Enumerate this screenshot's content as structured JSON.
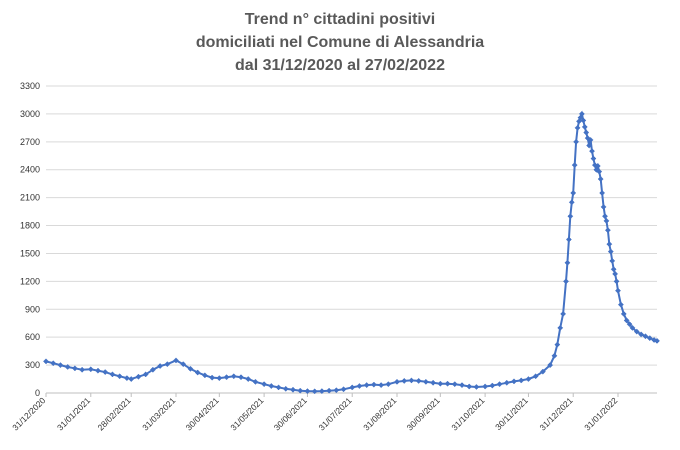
{
  "chart_data": {
    "type": "line",
    "title": [
      "Trend n° cittadini positivi",
      "domiciliati nel Comune di Alessandria",
      "dal 31/12/2020 al 27/02/2022"
    ],
    "xlabel": "",
    "ylabel": "",
    "x_range": [
      "31/12/2020",
      "27/02/2022"
    ],
    "ylim": [
      0,
      3300
    ],
    "yticks": [
      "0",
      "300",
      "600",
      "900",
      "1200",
      "1500",
      "1800",
      "2100",
      "2400",
      "2700",
      "3000",
      "3300"
    ],
    "xticks": [
      "31/12/2020",
      "31/01/2021",
      "28/02/2021",
      "31/03/2021",
      "30/04/2021",
      "31/05/2021",
      "30/06/2021",
      "31/07/2021",
      "31/08/2021",
      "30/09/2021",
      "31/10/2021",
      "30/11/2021",
      "31/12/2021",
      "31/01/2022"
    ],
    "grid": true,
    "legend": "none",
    "series_color": "#4472c4",
    "marker": "diamond",
    "series": [
      {
        "points": [
          [
            "31/12/2020",
            340
          ],
          [
            "05/01/2021",
            320
          ],
          [
            "10/01/2021",
            300
          ],
          [
            "15/01/2021",
            280
          ],
          [
            "20/01/2021",
            265
          ],
          [
            "25/01/2021",
            250
          ],
          [
            "31/01/2021",
            255
          ],
          [
            "05/02/2021",
            240
          ],
          [
            "10/02/2021",
            225
          ],
          [
            "15/02/2021",
            200
          ],
          [
            "20/02/2021",
            180
          ],
          [
            "25/02/2021",
            160
          ],
          [
            "28/02/2021",
            150
          ],
          [
            "05/03/2021",
            175
          ],
          [
            "10/03/2021",
            200
          ],
          [
            "15/03/2021",
            250
          ],
          [
            "20/03/2021",
            290
          ],
          [
            "25/03/2021",
            310
          ],
          [
            "31/03/2021",
            350
          ],
          [
            "05/04/2021",
            310
          ],
          [
            "10/04/2021",
            260
          ],
          [
            "15/04/2021",
            220
          ],
          [
            "20/04/2021",
            190
          ],
          [
            "25/04/2021",
            165
          ],
          [
            "30/04/2021",
            160
          ],
          [
            "05/05/2021",
            170
          ],
          [
            "10/05/2021",
            180
          ],
          [
            "15/05/2021",
            170
          ],
          [
            "20/05/2021",
            150
          ],
          [
            "25/05/2021",
            120
          ],
          [
            "31/05/2021",
            95
          ],
          [
            "05/06/2021",
            75
          ],
          [
            "10/06/2021",
            60
          ],
          [
            "15/06/2021",
            45
          ],
          [
            "20/06/2021",
            35
          ],
          [
            "25/06/2021",
            25
          ],
          [
            "30/06/2021",
            20
          ],
          [
            "05/07/2021",
            18
          ],
          [
            "10/07/2021",
            20
          ],
          [
            "15/07/2021",
            25
          ],
          [
            "20/07/2021",
            30
          ],
          [
            "25/07/2021",
            40
          ],
          [
            "31/07/2021",
            60
          ],
          [
            "05/08/2021",
            75
          ],
          [
            "10/08/2021",
            85
          ],
          [
            "15/08/2021",
            90
          ],
          [
            "20/08/2021",
            85
          ],
          [
            "25/08/2021",
            95
          ],
          [
            "31/08/2021",
            120
          ],
          [
            "05/09/2021",
            130
          ],
          [
            "10/09/2021",
            135
          ],
          [
            "15/09/2021",
            130
          ],
          [
            "20/09/2021",
            120
          ],
          [
            "25/09/2021",
            110
          ],
          [
            "30/09/2021",
            100
          ],
          [
            "05/10/2021",
            100
          ],
          [
            "10/10/2021",
            95
          ],
          [
            "15/10/2021",
            85
          ],
          [
            "20/10/2021",
            70
          ],
          [
            "25/10/2021",
            65
          ],
          [
            "31/10/2021",
            70
          ],
          [
            "05/11/2021",
            80
          ],
          [
            "10/11/2021",
            95
          ],
          [
            "15/11/2021",
            110
          ],
          [
            "20/11/2021",
            125
          ],
          [
            "25/11/2021",
            135
          ],
          [
            "30/11/2021",
            150
          ],
          [
            "05/12/2021",
            180
          ],
          [
            "10/12/2021",
            230
          ],
          [
            "15/12/2021",
            300
          ],
          [
            "18/12/2021",
            400
          ],
          [
            "20/12/2021",
            520
          ],
          [
            "22/12/2021",
            700
          ],
          [
            "24/12/2021",
            850
          ],
          [
            "26/12/2021",
            1200
          ],
          [
            "27/12/2021",
            1400
          ],
          [
            "28/12/2021",
            1650
          ],
          [
            "29/12/2021",
            1900
          ],
          [
            "30/12/2021",
            2050
          ],
          [
            "31/12/2021",
            2150
          ],
          [
            "01/01/2022",
            2450
          ],
          [
            "02/01/2022",
            2700
          ],
          [
            "03/01/2022",
            2850
          ],
          [
            "04/01/2022",
            2920
          ],
          [
            "05/01/2022",
            2960
          ],
          [
            "06/01/2022",
            3000
          ],
          [
            "07/01/2022",
            2930
          ],
          [
            "08/01/2022",
            2860
          ],
          [
            "09/01/2022",
            2800
          ],
          [
            "10/01/2022",
            2740
          ],
          [
            "11/01/2022",
            2660
          ],
          [
            "12/01/2022",
            2720
          ],
          [
            "13/01/2022",
            2600
          ],
          [
            "14/01/2022",
            2520
          ],
          [
            "15/01/2022",
            2450
          ],
          [
            "16/01/2022",
            2400
          ],
          [
            "17/01/2022",
            2440
          ],
          [
            "18/01/2022",
            2380
          ],
          [
            "19/01/2022",
            2300
          ],
          [
            "20/01/2022",
            2150
          ],
          [
            "21/01/2022",
            2000
          ],
          [
            "22/01/2022",
            1900
          ],
          [
            "23/01/2022",
            1850
          ],
          [
            "24/01/2022",
            1750
          ],
          [
            "25/01/2022",
            1600
          ],
          [
            "26/01/2022",
            1520
          ],
          [
            "27/01/2022",
            1420
          ],
          [
            "28/01/2022",
            1330
          ],
          [
            "29/01/2022",
            1280
          ],
          [
            "30/01/2022",
            1200
          ],
          [
            "31/01/2022",
            1100
          ],
          [
            "02/02/2022",
            950
          ],
          [
            "04/02/2022",
            850
          ],
          [
            "06/02/2022",
            780
          ],
          [
            "08/02/2022",
            740
          ],
          [
            "10/02/2022",
            700
          ],
          [
            "13/02/2022",
            660
          ],
          [
            "16/02/2022",
            630
          ],
          [
            "19/02/2022",
            610
          ],
          [
            "22/02/2022",
            590
          ],
          [
            "25/02/2022",
            570
          ],
          [
            "27/02/2022",
            560
          ]
        ]
      }
    ]
  }
}
